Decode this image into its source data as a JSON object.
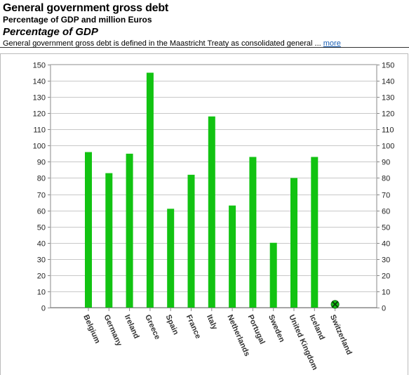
{
  "header": {
    "title": "General government gross debt",
    "subtitle": "Percentage of GDP and million Euros",
    "section_title": "Percentage of GDP",
    "description": "General government gross debt is defined in the Maastricht Treaty as consolidated general ...",
    "more_link": "more"
  },
  "colors": {
    "bar": "#12c312",
    "grid": "#c8c8c8",
    "axis": "#888888",
    "marker": "#1a7a1a"
  },
  "chart_data": {
    "type": "bar",
    "categories": [
      "Belgium",
      "Germany",
      "Ireland",
      "Greece",
      "Spain",
      "France",
      "Italy",
      "Netherlands",
      "Portugal",
      "Sweden",
      "United Kingdom",
      "Iceland",
      "Switzerland"
    ],
    "values": [
      96,
      83,
      95,
      145,
      61,
      82,
      118,
      63,
      93,
      40,
      80,
      93,
      null
    ],
    "missing_marker": {
      "category": "Switzerland",
      "y": 2
    },
    "ylim": [
      0,
      150
    ],
    "yticks": [
      0,
      10,
      20,
      30,
      40,
      50,
      60,
      70,
      80,
      90,
      100,
      110,
      120,
      130,
      140,
      150
    ],
    "grid": true,
    "y_axis_both_sides": true,
    "title": "",
    "xlabel": "",
    "ylabel": ""
  }
}
